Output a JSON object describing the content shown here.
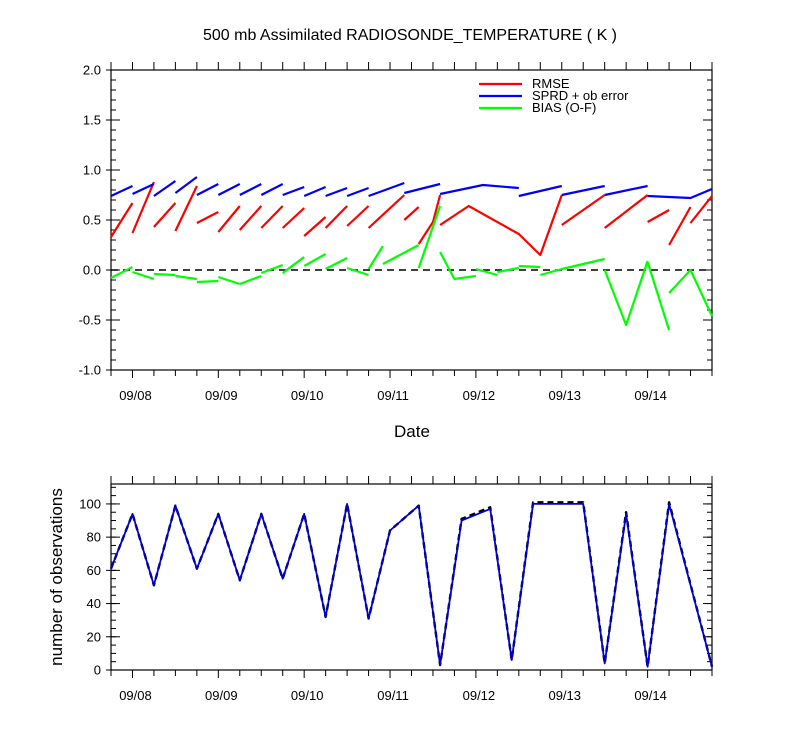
{
  "chart_data": [
    {
      "type": "line",
      "title": "500 mb Assimilated RADIOSONDE_TEMPERATURE ( K )",
      "xlabel": "Date",
      "ylabel": "",
      "ylim": [
        -1.0,
        2.0
      ],
      "xlim": [
        0,
        42
      ],
      "yticks": [
        "2.0",
        "1.5",
        "1.0",
        "0.5",
        "0.0",
        "-0.5",
        "-1.0"
      ],
      "categories": [
        "09/08",
        "09/09",
        "09/10",
        "09/11",
        "09/12",
        "09/13",
        "09/14"
      ],
      "category_x": [
        1.5,
        7.5,
        13.5,
        19.5,
        25.5,
        31.5,
        37.5
      ],
      "legend_position": "top-right",
      "zero_line": true,
      "series": [
        {
          "name": "RMSE",
          "color": "#ff0000",
          "segments": [
            [
              [
                0,
                0.33
              ],
              [
                1.5,
                0.67
              ]
            ],
            [
              [
                1.5,
                0.37
              ],
              [
                3,
                0.88
              ]
            ],
            [
              [
                3,
                0.43
              ],
              [
                4.5,
                0.67
              ]
            ],
            [
              [
                4.5,
                0.39
              ],
              [
                6,
                0.84
              ]
            ],
            [
              [
                6,
                0.47
              ],
              [
                7.5,
                0.58
              ]
            ],
            [
              [
                7.5,
                0.38
              ],
              [
                9,
                0.64
              ]
            ],
            [
              [
                9,
                0.4
              ],
              [
                10.5,
                0.64
              ]
            ],
            [
              [
                10.5,
                0.42
              ],
              [
                12,
                0.64
              ]
            ],
            [
              [
                12,
                0.42
              ],
              [
                13.5,
                0.62
              ]
            ],
            [
              [
                13.5,
                0.34
              ],
              [
                15,
                0.53
              ]
            ],
            [
              [
                15,
                0.42
              ],
              [
                16.5,
                0.64
              ]
            ],
            [
              [
                16.5,
                0.44
              ],
              [
                18,
                0.64
              ]
            ],
            [
              [
                18,
                0.42
              ],
              [
                20.5,
                0.75
              ]
            ],
            [
              [
                20.5,
                0.5
              ],
              [
                21.5,
                0.63
              ]
            ],
            [
              [
                21.5,
                0.26
              ],
              [
                22.5,
                0.48
              ],
              [
                23,
                0.75
              ]
            ],
            [
              [
                23,
                0.45
              ],
              [
                25,
                0.64
              ],
              [
                28.5,
                0.36
              ],
              [
                28.5,
                0.36
              ],
              [
                30,
                0.15
              ],
              [
                31.5,
                0.75
              ]
            ],
            [
              [
                31.5,
                0.45
              ],
              [
                34.5,
                0.75
              ]
            ],
            [
              [
                34.5,
                0.42
              ],
              [
                37.5,
                0.75
              ]
            ],
            [
              [
                37.5,
                0.48
              ],
              [
                39,
                0.6
              ]
            ],
            [
              [
                39,
                0.25
              ],
              [
                40.5,
                0.63
              ]
            ],
            [
              [
                40.5,
                0.47
              ],
              [
                42,
                0.74
              ]
            ]
          ]
        },
        {
          "name": "SPRD + ob error",
          "color": "#0000ff",
          "segments": [
            [
              [
                0,
                0.74
              ],
              [
                1.5,
                0.84
              ]
            ],
            [
              [
                1.5,
                0.76
              ],
              [
                3,
                0.86
              ]
            ],
            [
              [
                3,
                0.74
              ],
              [
                4.5,
                0.89
              ]
            ],
            [
              [
                4.5,
                0.77
              ],
              [
                6,
                0.93
              ]
            ],
            [
              [
                6,
                0.75
              ],
              [
                7.5,
                0.86
              ]
            ],
            [
              [
                7.5,
                0.75
              ],
              [
                9,
                0.86
              ]
            ],
            [
              [
                9,
                0.75
              ],
              [
                10.5,
                0.86
              ]
            ],
            [
              [
                10.5,
                0.75
              ],
              [
                12,
                0.86
              ]
            ],
            [
              [
                12,
                0.75
              ],
              [
                13.5,
                0.83
              ]
            ],
            [
              [
                13.5,
                0.74
              ],
              [
                15,
                0.83
              ]
            ],
            [
              [
                15,
                0.74
              ],
              [
                16.5,
                0.82
              ]
            ],
            [
              [
                16.5,
                0.74
              ],
              [
                18,
                0.82
              ]
            ],
            [
              [
                18,
                0.74
              ],
              [
                20.5,
                0.87
              ]
            ],
            [
              [
                20.5,
                0.77
              ],
              [
                23,
                0.86
              ]
            ],
            [
              [
                23,
                0.76
              ],
              [
                26,
                0.85
              ],
              [
                28.5,
                0.82
              ]
            ],
            [
              [
                28.5,
                0.74
              ],
              [
                31.5,
                0.84
              ]
            ],
            [
              [
                31.5,
                0.75
              ],
              [
                34.5,
                0.84
              ]
            ],
            [
              [
                34.5,
                0.75
              ],
              [
                37.5,
                0.84
              ]
            ],
            [
              [
                37.5,
                0.74
              ],
              [
                40.5,
                0.72
              ],
              [
                40.5,
                0.72
              ],
              [
                42,
                0.81
              ]
            ]
          ]
        },
        {
          "name": "BIAS (O-F)",
          "color": "#00ff00",
          "segments": [
            [
              [
                0,
                -0.08
              ],
              [
                1.5,
                0.03
              ]
            ],
            [
              [
                1.5,
                -0.02
              ],
              [
                3,
                -0.09
              ]
            ],
            [
              [
                3,
                -0.04
              ],
              [
                4.5,
                -0.05
              ]
            ],
            [
              [
                4.5,
                -0.06
              ],
              [
                6,
                -0.09
              ]
            ],
            [
              [
                6,
                -0.12
              ],
              [
                7.5,
                -0.11
              ]
            ],
            [
              [
                7.5,
                -0.07
              ],
              [
                9,
                -0.14
              ]
            ],
            [
              [
                9,
                -0.14
              ],
              [
                10.5,
                -0.06
              ]
            ],
            [
              [
                10.5,
                -0.03
              ],
              [
                12,
                0.05
              ]
            ],
            [
              [
                12,
                -0.03
              ],
              [
                13.5,
                0.13
              ]
            ],
            [
              [
                13.5,
                0.04
              ],
              [
                15,
                0.16
              ]
            ],
            [
              [
                15,
                0.01
              ],
              [
                16.5,
                0.12
              ]
            ],
            [
              [
                16.5,
                0.02
              ],
              [
                18,
                -0.05
              ]
            ],
            [
              [
                18,
                0.01
              ],
              [
                19,
                0.24
              ]
            ],
            [
              [
                19,
                0.06
              ],
              [
                21.5,
                0.25
              ]
            ],
            [
              [
                21.5,
                0.02
              ],
              [
                23,
                0.64
              ]
            ],
            [
              [
                23,
                0.18
              ],
              [
                24,
                -0.09
              ],
              [
                25.5,
                -0.06
              ]
            ],
            [
              [
                25.5,
                0.01
              ],
              [
                27,
                -0.05
              ]
            ],
            [
              [
                27,
                -0.02
              ],
              [
                28.5,
                0.02
              ]
            ],
            [
              [
                28.5,
                0.04
              ],
              [
                30,
                0.03
              ]
            ],
            [
              [
                30,
                -0.05
              ],
              [
                31.5,
                0.01
              ]
            ],
            [
              [
                31.5,
                0.01
              ],
              [
                34.5,
                0.11
              ]
            ],
            [
              [
                34.5,
                0.0
              ],
              [
                36,
                -0.55
              ],
              [
                37.5,
                0.09
              ]
            ],
            [
              [
                37.5,
                0.08
              ],
              [
                39,
                -0.6
              ]
            ],
            [
              [
                39,
                -0.23
              ],
              [
                40.5,
                0.0
              ],
              [
                42,
                -0.46
              ]
            ]
          ]
        }
      ]
    },
    {
      "type": "line",
      "title": "",
      "xlabel": "",
      "ylabel": "number of observations",
      "ylim": [
        0,
        112
      ],
      "xlim": [
        0,
        42
      ],
      "yticks": [
        "0",
        "20",
        "40",
        "60",
        "80",
        "100"
      ],
      "categories": [
        "09/08",
        "09/09",
        "09/10",
        "09/11",
        "09/12",
        "09/13",
        "09/14"
      ],
      "category_x": [
        1.5,
        7.5,
        13.5,
        19.5,
        25.5,
        31.5,
        37.5
      ],
      "series": [
        {
          "color": "#000000",
          "style": "dashed",
          "points": [
            [
              0,
              61
            ],
            [
              1.5,
              94
            ],
            [
              3,
              51
            ],
            [
              4.5,
              99
            ],
            [
              6,
              61
            ],
            [
              7.5,
              94
            ],
            [
              9,
              54
            ],
            [
              10.5,
              94
            ],
            [
              12,
              55
            ],
            [
              13.5,
              94
            ],
            [
              15,
              32
            ],
            [
              16.5,
              100
            ],
            [
              18,
              31
            ],
            [
              19.5,
              84
            ],
            [
              21.5,
              99
            ],
            [
              23,
              3
            ],
            [
              24.5,
              91
            ],
            [
              26.5,
              98
            ],
            [
              28,
              6
            ],
            [
              29.5,
              101
            ],
            [
              31.5,
              101
            ],
            [
              33,
              101
            ],
            [
              34.5,
              4
            ],
            [
              36,
              95
            ],
            [
              37.5,
              2
            ],
            [
              39,
              101
            ],
            [
              42,
              2
            ]
          ]
        },
        {
          "color": "#0000cc",
          "style": "solid",
          "points": [
            [
              0,
              61
            ],
            [
              1.5,
              94
            ],
            [
              3,
              51
            ],
            [
              4.5,
              99
            ],
            [
              6,
              61
            ],
            [
              7.5,
              94
            ],
            [
              9,
              54
            ],
            [
              10.5,
              94
            ],
            [
              12,
              55
            ],
            [
              13.5,
              94
            ],
            [
              15,
              32
            ],
            [
              16.5,
              100
            ],
            [
              18,
              31
            ],
            [
              19.5,
              84
            ],
            [
              21.5,
              99
            ],
            [
              23,
              3
            ],
            [
              24.5,
              90
            ],
            [
              26.5,
              97
            ],
            [
              28,
              6
            ],
            [
              29.5,
              100
            ],
            [
              31.5,
              100
            ],
            [
              33,
              100
            ],
            [
              34.5,
              4
            ],
            [
              36,
              94
            ],
            [
              37.5,
              2
            ],
            [
              39,
              100
            ],
            [
              42,
              2
            ]
          ]
        }
      ]
    }
  ]
}
